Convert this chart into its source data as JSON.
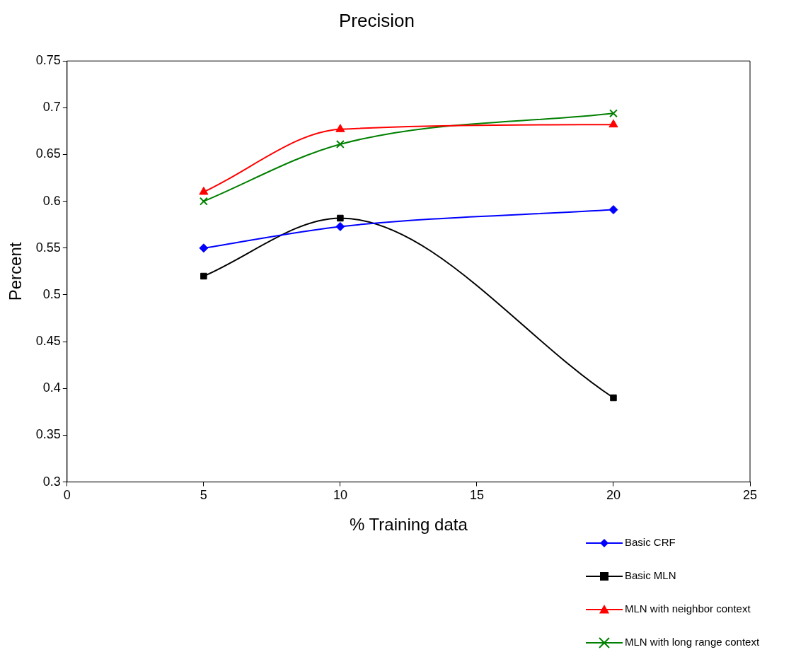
{
  "chart_data": {
    "type": "line",
    "title": "Precision",
    "xlabel": "% Training data",
    "ylabel": "Percent",
    "x": [
      5,
      10,
      20
    ],
    "series": [
      {
        "name": "Basic CRF",
        "color": "#0000ff",
        "marker": "diamond",
        "values": [
          0.55,
          0.573,
          0.591
        ]
      },
      {
        "name": "Basic MLN",
        "color": "#000000",
        "marker": "square",
        "values": [
          0.52,
          0.582,
          0.39
        ]
      },
      {
        "name": "MLN with neighbor context",
        "color": "#ff0000",
        "marker": "triangle",
        "values": [
          0.61,
          0.677,
          0.682
        ]
      },
      {
        "name": "MLN with long range context",
        "color": "#008000",
        "marker": "cross",
        "values": [
          0.6,
          0.661,
          0.694
        ]
      }
    ],
    "xlim": [
      0,
      25
    ],
    "xticks": [
      0,
      5,
      10,
      15,
      20,
      25
    ],
    "ylim": [
      0.3,
      0.75
    ],
    "yticks": [
      0.3,
      0.35,
      0.4,
      0.45,
      0.5,
      0.55,
      0.6,
      0.65,
      0.7,
      0.75
    ],
    "grid": false,
    "legend": "bottom right"
  }
}
